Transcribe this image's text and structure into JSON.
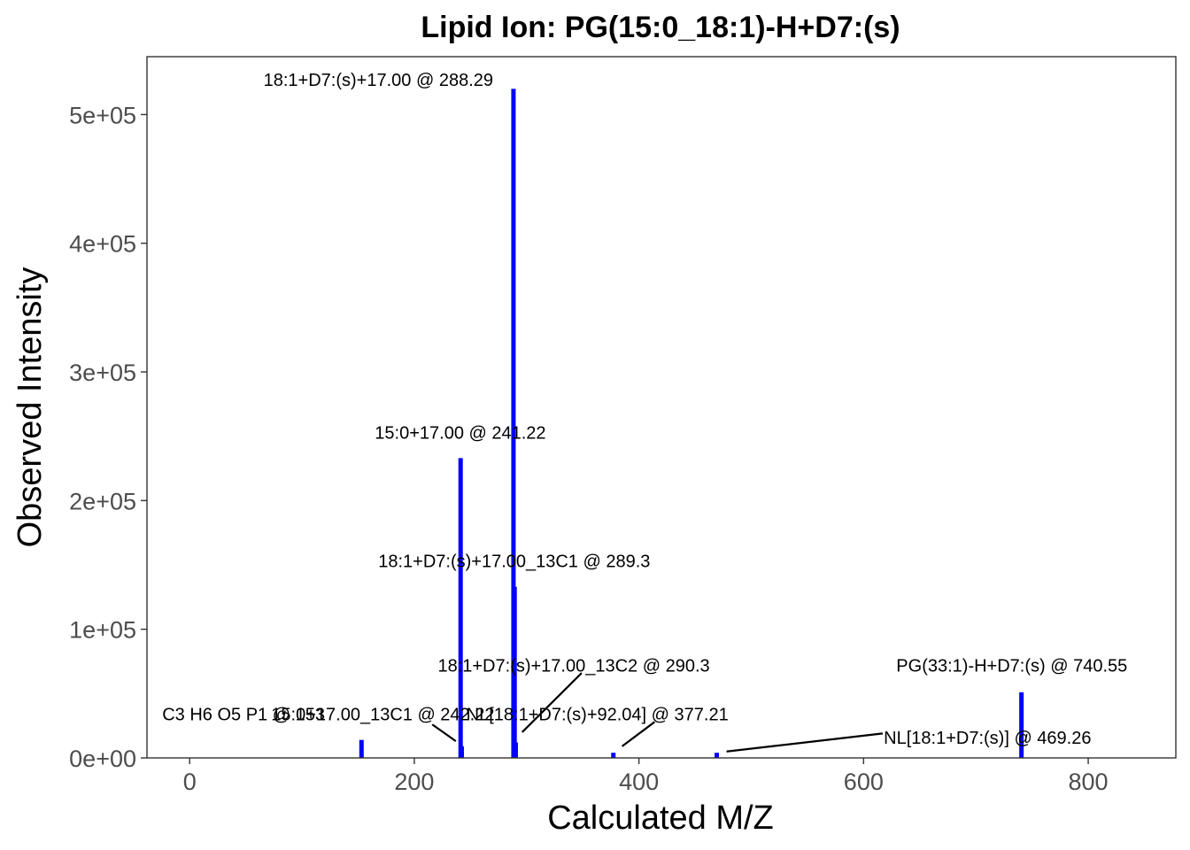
{
  "chart_data": {
    "type": "bar",
    "title": "Lipid Ion: PG(15:0_18:1)-H+D7:(s)",
    "xlabel": "Calculated M/Z",
    "ylabel": "Observed Intensity",
    "xlim": [
      -38,
      878
    ],
    "ylim": [
      0,
      545000
    ],
    "xticks": [
      0,
      200,
      400,
      600,
      800
    ],
    "xtick_labels": [
      "0",
      "200",
      "400",
      "600",
      "800"
    ],
    "yticks": [
      0,
      100000,
      200000,
      300000,
      400000,
      500000
    ],
    "ytick_labels": [
      "0e+00",
      "1e+05",
      "2e+05",
      "3e+05",
      "4e+05",
      "5e+05"
    ],
    "bar_color": "#0000ff",
    "grid": false,
    "peaks": [
      {
        "mz": 152.99,
        "intensity": 14000
      },
      {
        "mz": 241.22,
        "intensity": 233000
      },
      {
        "mz": 242.22,
        "intensity": 9000
      },
      {
        "mz": 288.29,
        "intensity": 520000
      },
      {
        "mz": 289.3,
        "intensity": 133000
      },
      {
        "mz": 290.3,
        "intensity": 12000
      },
      {
        "mz": 377.21,
        "intensity": 4000
      },
      {
        "mz": 469.26,
        "intensity": 4000
      },
      {
        "mz": 740.55,
        "intensity": 51000
      }
    ],
    "annotations": [
      {
        "text": "18:1+D7:(s)+17.00 @ 288.29",
        "x": 168,
        "y": 527000,
        "anchor": "middle",
        "leader": null
      },
      {
        "text": "15:0+17.00 @ 241.22",
        "x": 241,
        "y": 253000,
        "anchor": "middle",
        "leader": null
      },
      {
        "text": "18:1+D7:(s)+17.00_13C1 @ 289.3",
        "x": 289,
        "y": 153000,
        "anchor": "middle",
        "leader": null
      },
      {
        "text": "18:1+D7:(s)+17.00_13C2 @ 290.3",
        "x": 342,
        "y": 72000,
        "anchor": "middle",
        "leader": {
          "x1": 349,
          "y1": 66000,
          "x2": 296,
          "y2": 20000
        }
      },
      {
        "text": "PG(33:1)-H+D7:(s) @ 740.55",
        "x": 732,
        "y": 72000,
        "anchor": "middle",
        "leader": null
      },
      {
        "text": "C3 H6 O5 P1 @ 153",
        "x": 48,
        "y": 34000,
        "anchor": "middle",
        "leader": null
      },
      {
        "text": "15:0+17.00_13C1 @ 242.22",
        "x": 172,
        "y": 34000,
        "anchor": "middle",
        "leader": {
          "x1": 216,
          "y1": 26000,
          "x2": 237,
          "y2": 13000
        }
      },
      {
        "text": "NL[18:1+D7:(s)+92.04] @ 377.21",
        "x": 363,
        "y": 34000,
        "anchor": "middle",
        "leader": {
          "x1": 414,
          "y1": 28000,
          "x2": 385,
          "y2": 9000
        }
      },
      {
        "text": "NL[18:1+D7:(s)] @ 469.26",
        "x": 618,
        "y": 16000,
        "anchor": "start",
        "leader": {
          "x1": 617,
          "y1": 19000,
          "x2": 478,
          "y2": 5000
        }
      }
    ]
  }
}
